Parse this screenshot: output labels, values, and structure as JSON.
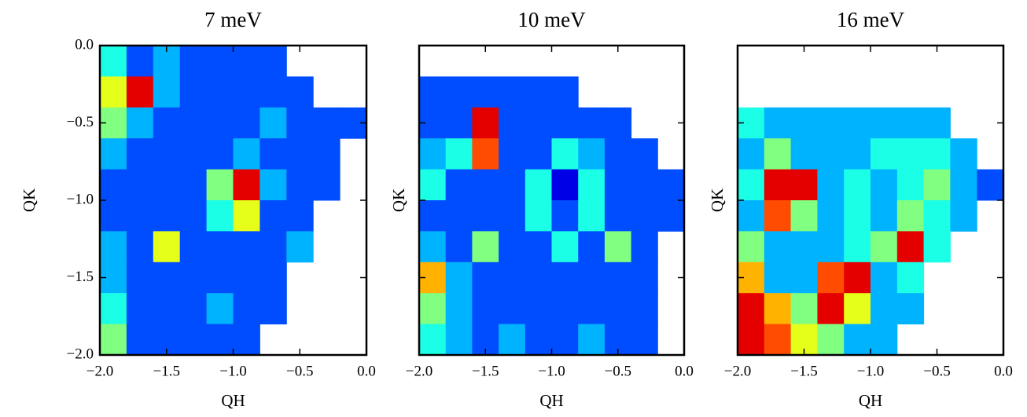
{
  "chart_data": [
    {
      "type": "heatmap",
      "title": "7 meV",
      "x_label": "QH",
      "y_label": "QK",
      "colormap": "jet",
      "clim": [
        0,
        1
      ],
      "ytick_labels": true,
      "xlim": [
        -2,
        0
      ],
      "ylim": [
        -2,
        0
      ],
      "xticks": [
        {
          "value": -2,
          "label": "−2.0"
        },
        {
          "value": -1.5,
          "label": "−1.5"
        },
        {
          "value": -1,
          "label": "−1.0"
        },
        {
          "value": -0.5,
          "label": "−0.5"
        },
        {
          "value": 0,
          "label": "0.0"
        }
      ],
      "yticks": [
        {
          "value": -2,
          "label": "−2.0"
        },
        {
          "value": -1.5,
          "label": "−1.5"
        },
        {
          "value": -1,
          "label": "−1.0"
        },
        {
          "value": -0.5,
          "label": "−0.5"
        },
        {
          "value": 0,
          "label": "0.0"
        }
      ],
      "x": [
        -2,
        -1.8,
        -1.6,
        -1.4,
        -1.2,
        -1,
        -0.8,
        -0.6,
        -0.4,
        -0.2,
        0
      ],
      "y": [
        0,
        -0.2,
        -0.4,
        -0.6,
        -0.8,
        -1,
        -1.2,
        -1.4,
        -1.6,
        -1.8,
        -2
      ],
      "values": [
        [
          0.4,
          0.2,
          0.3,
          0.2,
          0.2,
          0.2,
          0.2,
          null,
          null,
          null
        ],
        [
          0.6,
          0.9,
          0.3,
          0.2,
          0.2,
          0.2,
          0.2,
          0.2,
          null,
          null
        ],
        [
          0.5,
          0.3,
          0.2,
          0.2,
          0.2,
          0.2,
          0.3,
          0.2,
          0.2,
          0.2
        ],
        [
          0.3,
          0.2,
          0.2,
          0.2,
          0.2,
          0.3,
          0.2,
          0.2,
          0.2,
          null
        ],
        [
          0.2,
          0.2,
          0.2,
          0.2,
          0.5,
          0.9,
          0.3,
          0.2,
          0.2,
          null
        ],
        [
          0.2,
          0.2,
          0.2,
          0.2,
          0.4,
          0.6,
          0.2,
          0.2,
          null,
          null
        ],
        [
          0.3,
          0.2,
          0.6,
          0.2,
          0.2,
          0.2,
          0.2,
          0.3,
          null,
          null
        ],
        [
          0.3,
          0.2,
          0.2,
          0.2,
          0.2,
          0.2,
          0.2,
          null,
          null,
          null
        ],
        [
          0.4,
          0.2,
          0.2,
          0.2,
          0.3,
          0.2,
          0.2,
          null,
          null,
          null
        ],
        [
          0.5,
          0.2,
          0.2,
          0.2,
          0.2,
          0.2,
          null,
          null,
          null,
          null
        ]
      ]
    },
    {
      "type": "heatmap",
      "title": "10 meV",
      "x_label": "QH",
      "y_label": "QK",
      "colormap": "jet",
      "clim": [
        0,
        1
      ],
      "ytick_labels": false,
      "xlim": [
        -2,
        0
      ],
      "ylim": [
        -2,
        0
      ],
      "xticks": [
        {
          "value": -2,
          "label": "−2.0"
        },
        {
          "value": -1.5,
          "label": "−1.5"
        },
        {
          "value": -1,
          "label": "−1.0"
        },
        {
          "value": -0.5,
          "label": "−0.5"
        },
        {
          "value": 0,
          "label": "0.0"
        }
      ],
      "yticks": [
        -2,
        -1.5,
        -1,
        -0.5,
        0
      ],
      "x": [
        -2,
        -1.8,
        -1.6,
        -1.4,
        -1.2,
        -1,
        -0.8,
        -0.6,
        -0.4,
        -0.2,
        0
      ],
      "y": [
        0,
        -0.2,
        -0.4,
        -0.6,
        -0.8,
        -1,
        -1.2,
        -1.4,
        -1.6,
        -1.8,
        -2
      ],
      "values": [
        [
          null,
          null,
          null,
          null,
          null,
          null,
          null,
          null,
          null,
          null
        ],
        [
          0.2,
          0.2,
          0.2,
          0.2,
          0.2,
          0.2,
          null,
          null,
          null,
          null
        ],
        [
          0.2,
          0.2,
          0.9,
          0.2,
          0.2,
          0.2,
          0.2,
          0.2,
          null,
          null
        ],
        [
          0.3,
          0.4,
          0.8,
          0.2,
          0.2,
          0.4,
          0.3,
          0.2,
          0.2,
          null
        ],
        [
          0.4,
          0.2,
          0.2,
          0.2,
          0.4,
          0.1,
          0.4,
          0.2,
          0.2,
          0.2
        ],
        [
          0.2,
          0.2,
          0.2,
          0.2,
          0.4,
          0.2,
          0.4,
          0.2,
          0.2,
          0.2
        ],
        [
          0.3,
          0.2,
          0.5,
          0.2,
          0.2,
          0.4,
          0.2,
          0.5,
          0.2,
          null
        ],
        [
          0.7,
          0.3,
          0.2,
          0.2,
          0.2,
          0.2,
          0.2,
          0.2,
          0.2,
          null
        ],
        [
          0.5,
          0.3,
          0.2,
          0.2,
          0.2,
          0.2,
          0.2,
          0.2,
          0.2,
          null
        ],
        [
          0.4,
          0.3,
          0.2,
          0.3,
          0.2,
          0.2,
          0.3,
          0.2,
          0.2,
          null
        ]
      ]
    },
    {
      "type": "heatmap",
      "title": "16 meV",
      "x_label": "QH",
      "y_label": "QK",
      "colormap": "jet",
      "clim": [
        0,
        1
      ],
      "ytick_labels": false,
      "xlim": [
        -2,
        0
      ],
      "ylim": [
        -2,
        0
      ],
      "xticks": [
        {
          "value": -2,
          "label": "−2.0"
        },
        {
          "value": -1.5,
          "label": "−1.5"
        },
        {
          "value": -1,
          "label": "−1.0"
        },
        {
          "value": -0.5,
          "label": "−0.5"
        },
        {
          "value": 0,
          "label": "0.0"
        }
      ],
      "yticks": [
        -2,
        -1.5,
        -1,
        -0.5,
        0
      ],
      "x": [
        -2,
        -1.8,
        -1.6,
        -1.4,
        -1.2,
        -1,
        -0.8,
        -0.6,
        -0.4,
        -0.2,
        0
      ],
      "y": [
        0,
        -0.2,
        -0.4,
        -0.6,
        -0.8,
        -1,
        -1.2,
        -1.4,
        -1.6,
        -1.8,
        -2
      ],
      "values": [
        [
          null,
          null,
          null,
          null,
          null,
          null,
          null,
          null,
          null,
          null
        ],
        [
          null,
          null,
          null,
          null,
          null,
          null,
          null,
          null,
          null,
          null
        ],
        [
          0.4,
          0.3,
          0.3,
          0.3,
          0.3,
          0.3,
          0.3,
          0.3,
          null,
          null
        ],
        [
          0.3,
          0.5,
          0.3,
          0.3,
          0.3,
          0.4,
          0.4,
          0.4,
          0.3,
          null
        ],
        [
          0.4,
          0.9,
          0.9,
          0.3,
          0.4,
          0.3,
          0.4,
          0.5,
          0.3,
          0.2
        ],
        [
          0.3,
          0.8,
          0.5,
          0.3,
          0.4,
          0.3,
          0.5,
          0.4,
          0.3,
          null
        ],
        [
          0.5,
          0.3,
          0.3,
          0.3,
          0.4,
          0.5,
          0.9,
          0.4,
          null,
          null
        ],
        [
          0.7,
          0.3,
          0.3,
          0.8,
          0.9,
          0.3,
          0.4,
          null,
          null,
          null
        ],
        [
          0.9,
          0.7,
          0.5,
          0.9,
          0.6,
          0.3,
          0.3,
          null,
          null,
          null
        ],
        [
          0.9,
          0.8,
          0.6,
          0.5,
          0.3,
          0.3,
          null,
          null,
          null,
          null
        ]
      ]
    }
  ]
}
